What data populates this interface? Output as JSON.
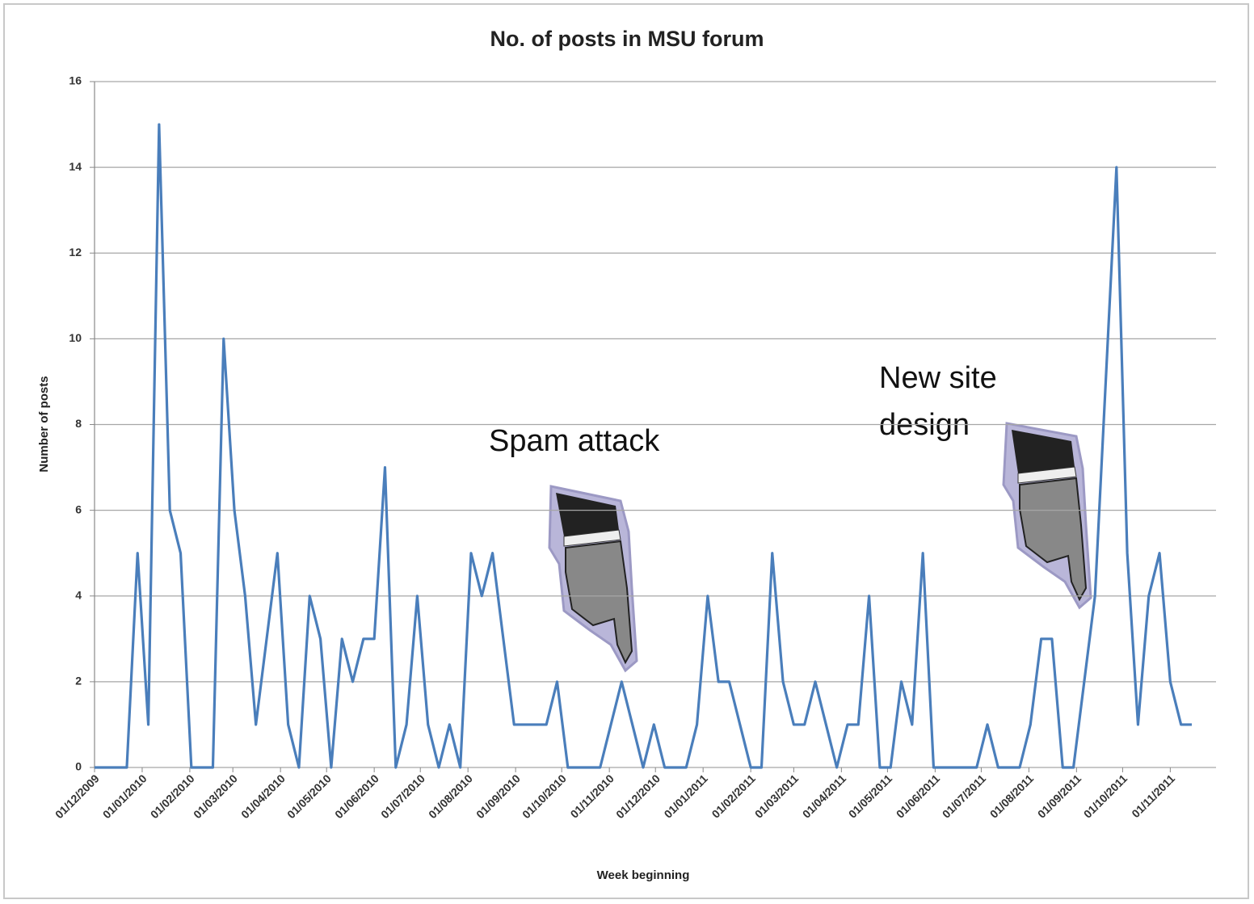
{
  "chart_data": {
    "type": "line",
    "title": "No. of posts in MSU forum",
    "x_label": "Week beginning",
    "y_label": "Number of posts",
    "color": "#4a7ebb",
    "grid": true,
    "x": [
      "2009-12-01",
      "2009-12-08",
      "2009-12-15",
      "2009-12-22",
      "2009-12-29",
      "2010-01-05",
      "2010-01-12",
      "2010-01-19",
      "2010-01-26",
      "2010-02-02",
      "2010-02-09",
      "2010-02-16",
      "2010-02-23",
      "2010-03-02",
      "2010-03-09",
      "2010-03-16",
      "2010-03-23",
      "2010-03-30",
      "2010-04-06",
      "2010-04-13",
      "2010-04-20",
      "2010-04-27",
      "2010-05-04",
      "2010-05-11",
      "2010-05-18",
      "2010-05-25",
      "2010-06-01",
      "2010-06-08",
      "2010-06-15",
      "2010-06-22",
      "2010-06-29",
      "2010-07-06",
      "2010-07-13",
      "2010-07-20",
      "2010-07-27",
      "2010-08-03",
      "2010-08-10",
      "2010-08-17",
      "2010-08-24",
      "2010-08-31",
      "2010-09-07",
      "2010-09-14",
      "2010-09-21",
      "2010-09-28",
      "2010-10-05",
      "2010-10-12",
      "2010-10-19",
      "2010-10-26",
      "2010-11-02",
      "2010-11-09",
      "2010-11-16",
      "2010-11-23",
      "2010-11-30",
      "2010-12-07",
      "2010-12-14",
      "2010-12-21",
      "2010-12-28",
      "2011-01-04",
      "2011-01-11",
      "2011-01-18",
      "2011-01-25",
      "2011-02-01",
      "2011-02-08",
      "2011-02-15",
      "2011-02-22",
      "2011-03-01",
      "2011-03-08",
      "2011-03-15",
      "2011-03-22",
      "2011-03-29",
      "2011-04-05",
      "2011-04-12",
      "2011-04-19",
      "2011-04-26",
      "2011-05-03",
      "2011-05-10",
      "2011-05-17",
      "2011-05-24",
      "2011-05-31",
      "2011-06-07",
      "2011-06-14",
      "2011-06-21",
      "2011-06-28",
      "2011-07-05",
      "2011-07-12",
      "2011-07-19",
      "2011-07-26",
      "2011-08-02",
      "2011-08-09",
      "2011-08-16",
      "2011-08-23",
      "2011-08-30",
      "2011-09-06",
      "2011-09-13",
      "2011-09-20",
      "2011-09-27",
      "2011-10-04",
      "2011-10-11",
      "2011-10-18",
      "2011-10-25",
      "2011-11-01",
      "2011-11-08",
      "2011-11-15"
    ],
    "values": [
      0,
      0,
      0,
      0,
      5,
      1,
      15,
      6,
      5,
      0,
      0,
      0,
      10,
      6,
      4,
      1,
      3,
      5,
      1,
      0,
      4,
      3,
      0,
      3,
      2,
      3,
      3,
      7,
      0,
      1,
      4,
      1,
      0,
      1,
      0,
      5,
      4,
      5,
      3,
      1,
      1,
      1,
      1,
      2,
      0,
      0,
      0,
      0,
      1,
      2,
      1,
      0,
      1,
      0,
      0,
      0,
      1,
      4,
      2,
      2,
      1,
      0,
      0,
      5,
      2,
      1,
      1,
      2,
      1,
      0,
      1,
      1,
      4,
      0,
      0,
      2,
      1,
      5,
      0,
      0,
      0,
      0,
      0,
      1,
      0,
      0,
      0,
      1,
      3,
      3,
      0,
      0,
      2,
      4,
      9,
      14,
      5,
      1,
      4,
      5,
      2,
      1,
      1
    ],
    "xlim": [
      "2009-12-01",
      "2011-11-15"
    ],
    "xticks": [
      {
        "value": "2009-12-01",
        "label": "01/12/2009"
      },
      {
        "value": "2010-01-01",
        "label": "01/01/2010"
      },
      {
        "value": "2010-02-01",
        "label": "01/02/2010"
      },
      {
        "value": "2010-03-01",
        "label": "01/03/2010"
      },
      {
        "value": "2010-04-01",
        "label": "01/04/2010"
      },
      {
        "value": "2010-05-01",
        "label": "01/05/2010"
      },
      {
        "value": "2010-06-01",
        "label": "01/06/2010"
      },
      {
        "value": "2010-07-01",
        "label": "01/07/2010"
      },
      {
        "value": "2010-08-01",
        "label": "01/08/2010"
      },
      {
        "value": "2010-09-01",
        "label": "01/09/2010"
      },
      {
        "value": "2010-10-01",
        "label": "01/10/2010"
      },
      {
        "value": "2010-11-01",
        "label": "01/11/2010"
      },
      {
        "value": "2010-12-01",
        "label": "01/12/2010"
      },
      {
        "value": "2011-01-01",
        "label": "01/01/2011"
      },
      {
        "value": "2011-02-01",
        "label": "01/02/2011"
      },
      {
        "value": "2011-03-01",
        "label": "01/03/2011"
      },
      {
        "value": "2011-04-01",
        "label": "01/04/2011"
      },
      {
        "value": "2011-05-01",
        "label": "01/05/2011"
      },
      {
        "value": "2011-06-01",
        "label": "01/06/2011"
      },
      {
        "value": "2011-07-01",
        "label": "01/07/2011"
      },
      {
        "value": "2011-08-01",
        "label": "01/08/2011"
      },
      {
        "value": "2011-09-01",
        "label": "01/09/2011"
      },
      {
        "value": "2011-10-01",
        "label": "01/10/2011"
      },
      {
        "value": "2011-11-01",
        "label": "01/11/2011"
      }
    ],
    "ylim": [
      0,
      16
    ],
    "yticks": [
      0,
      2,
      4,
      6,
      8,
      10,
      12,
      14,
      16
    ],
    "annotations": [
      {
        "lines": [
          "Spam attack"
        ]
      },
      {
        "lines": [
          "New site",
          "design"
        ]
      }
    ]
  }
}
